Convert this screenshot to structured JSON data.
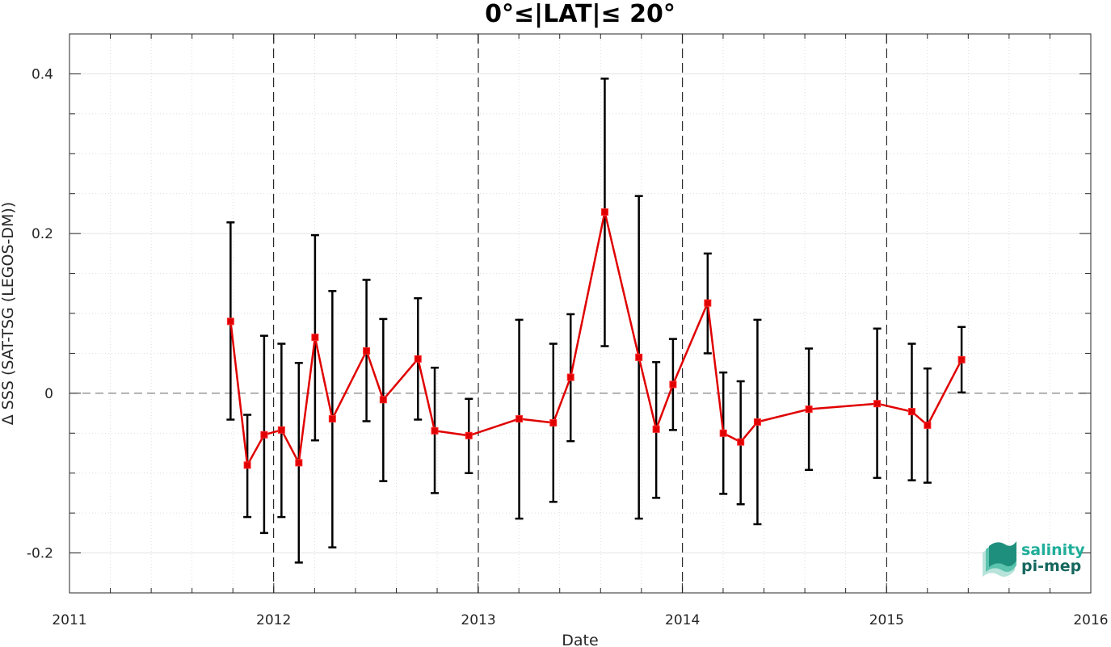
{
  "chart_data": {
    "type": "line",
    "title": "0°≤|LAT|≤ 20°",
    "xlabel": "Date",
    "ylabel": "Δ SSS (SAT-TSG (LEGOS-DM))",
    "xlim": [
      "2011-01-01",
      "2016-01-01"
    ],
    "ylim": [
      -0.25,
      0.45
    ],
    "x_ticks": [
      {
        "date": "2011-01-01",
        "label": "2011"
      },
      {
        "date": "2012-01-01",
        "label": "2012"
      },
      {
        "date": "2013-01-01",
        "label": "2013"
      },
      {
        "date": "2014-01-01",
        "label": "2014"
      },
      {
        "date": "2015-01-01",
        "label": "2015"
      },
      {
        "date": "2016-01-01",
        "label": "2016"
      }
    ],
    "y_ticks": [
      {
        "value": -0.2,
        "label": "-0.2"
      },
      {
        "value": 0,
        "label": "0"
      },
      {
        "value": 0.2,
        "label": "0.2"
      },
      {
        "value": 0.4,
        "label": "0.4"
      }
    ],
    "grid": true,
    "year_boundary_lines": true,
    "zero_line": true,
    "series": [
      {
        "color": "#e00000",
        "errorbar_color": "#000000",
        "marker": "square",
        "points": [
          {
            "x": "2011-10-16",
            "y": 0.09,
            "lo": -0.033,
            "hi": 0.214
          },
          {
            "x": "2011-11-15",
            "y": -0.09,
            "lo": -0.155,
            "hi": -0.027
          },
          {
            "x": "2011-12-15",
            "y": -0.052,
            "lo": -0.175,
            "hi": 0.072
          },
          {
            "x": "2012-01-15",
            "y": -0.046,
            "lo": -0.155,
            "hi": 0.062
          },
          {
            "x": "2012-02-15",
            "y": -0.087,
            "lo": -0.212,
            "hi": 0.038
          },
          {
            "x": "2012-03-15",
            "y": 0.07,
            "lo": -0.059,
            "hi": 0.198
          },
          {
            "x": "2012-04-15",
            "y": -0.032,
            "lo": -0.193,
            "hi": 0.128
          },
          {
            "x": "2012-06-15",
            "y": 0.053,
            "lo": -0.035,
            "hi": 0.142
          },
          {
            "x": "2012-07-15",
            "y": -0.008,
            "lo": -0.11,
            "hi": 0.093
          },
          {
            "x": "2012-09-15",
            "y": 0.043,
            "lo": -0.033,
            "hi": 0.119
          },
          {
            "x": "2012-10-15",
            "y": -0.047,
            "lo": -0.125,
            "hi": 0.032
          },
          {
            "x": "2012-12-15",
            "y": -0.053,
            "lo": -0.1,
            "hi": -0.007
          },
          {
            "x": "2013-03-15",
            "y": -0.032,
            "lo": -0.157,
            "hi": 0.092
          },
          {
            "x": "2013-05-15",
            "y": -0.037,
            "lo": -0.136,
            "hi": 0.062
          },
          {
            "x": "2013-06-15",
            "y": 0.02,
            "lo": -0.06,
            "hi": 0.099
          },
          {
            "x": "2013-08-15",
            "y": 0.227,
            "lo": 0.059,
            "hi": 0.394
          },
          {
            "x": "2013-10-15",
            "y": 0.045,
            "lo": -0.157,
            "hi": 0.247
          },
          {
            "x": "2013-11-15",
            "y": -0.045,
            "lo": -0.131,
            "hi": 0.039
          },
          {
            "x": "2013-12-15",
            "y": 0.011,
            "lo": -0.046,
            "hi": 0.068
          },
          {
            "x": "2014-02-15",
            "y": 0.113,
            "lo": 0.05,
            "hi": 0.175
          },
          {
            "x": "2014-03-15",
            "y": -0.05,
            "lo": -0.126,
            "hi": 0.026
          },
          {
            "x": "2014-04-15",
            "y": -0.061,
            "lo": -0.139,
            "hi": 0.015
          },
          {
            "x": "2014-05-15",
            "y": -0.036,
            "lo": -0.164,
            "hi": 0.092
          },
          {
            "x": "2014-08-15",
            "y": -0.02,
            "lo": -0.096,
            "hi": 0.056
          },
          {
            "x": "2014-12-15",
            "y": -0.013,
            "lo": -0.106,
            "hi": 0.081
          },
          {
            "x": "2015-02-15",
            "y": -0.023,
            "lo": -0.109,
            "hi": 0.062
          },
          {
            "x": "2015-03-15",
            "y": -0.04,
            "lo": -0.112,
            "hi": 0.031
          },
          {
            "x": "2015-05-15",
            "y": 0.042,
            "lo": 0.001,
            "hi": 0.083
          }
        ]
      }
    ]
  },
  "logo": {
    "line1": "salinity",
    "line2": "pi-mep",
    "color1": "#1fae9a",
    "color2": "#16675f"
  }
}
